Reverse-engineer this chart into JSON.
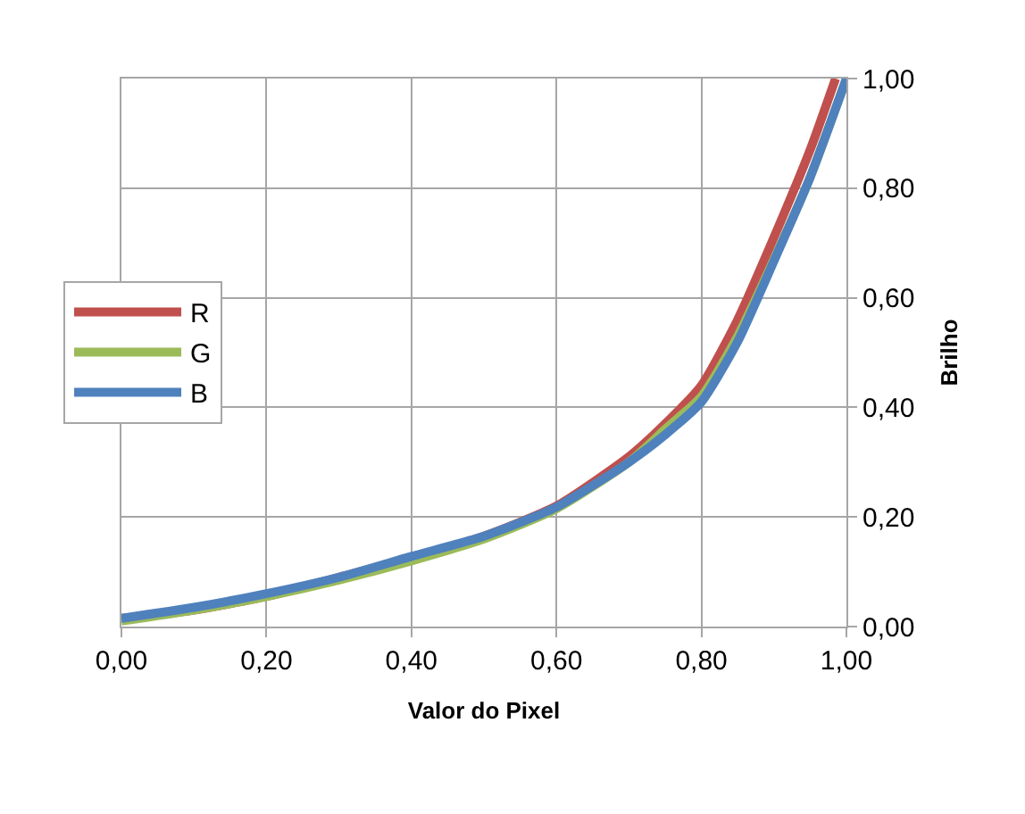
{
  "chart_data": {
    "type": "line",
    "xlabel": "Valor do Pixel",
    "ylabel": "Brilho",
    "xlim": [
      0,
      1
    ],
    "ylim": [
      0,
      1
    ],
    "xticks": [
      {
        "value": 0,
        "label": "0,00"
      },
      {
        "value": 0.2,
        "label": "0,20"
      },
      {
        "value": 0.4,
        "label": "0,40"
      },
      {
        "value": 0.6,
        "label": "0,60"
      },
      {
        "value": 0.8,
        "label": "0,80"
      },
      {
        "value": 1,
        "label": "1,00"
      }
    ],
    "yticks": [
      {
        "value": 0,
        "label": "0,00"
      },
      {
        "value": 0.2,
        "label": "0,20"
      },
      {
        "value": 0.4,
        "label": "0,40"
      },
      {
        "value": 0.6,
        "label": "0,60"
      },
      {
        "value": 0.8,
        "label": "0,80"
      },
      {
        "value": 1,
        "label": "1,00"
      }
    ],
    "grid": true,
    "legend": "left",
    "marker": "none",
    "line_style": "solid",
    "series": [
      {
        "name": "R",
        "color": "#c0504d",
        "x": [
          0,
          0.1,
          0.2,
          0.3,
          0.4,
          0.5,
          0.6,
          0.7,
          0.75,
          0.8,
          0.85,
          0.9,
          0.95,
          0.985
        ],
        "values": [
          0.015,
          0.03,
          0.055,
          0.09,
          0.125,
          0.165,
          0.22,
          0.31,
          0.37,
          0.44,
          0.56,
          0.71,
          0.87,
          1.0
        ]
      },
      {
        "name": "G",
        "color": "#9bbb59",
        "x": [
          0,
          0.1,
          0.2,
          0.3,
          0.4,
          0.5,
          0.6,
          0.7,
          0.75,
          0.8,
          0.85,
          0.9,
          0.95,
          1.0
        ],
        "values": [
          0.01,
          0.03,
          0.055,
          0.085,
          0.12,
          0.16,
          0.215,
          0.3,
          0.36,
          0.42,
          0.53,
          0.67,
          0.82,
          1.0
        ]
      },
      {
        "name": "B",
        "color": "#4f81bd",
        "x": [
          0,
          0.1,
          0.2,
          0.3,
          0.4,
          0.5,
          0.6,
          0.7,
          0.75,
          0.8,
          0.85,
          0.9,
          0.95,
          1.0
        ],
        "values": [
          0.015,
          0.035,
          0.06,
          0.09,
          0.128,
          0.165,
          0.218,
          0.3,
          0.35,
          0.41,
          0.52,
          0.667,
          0.82,
          1.0
        ]
      }
    ]
  }
}
